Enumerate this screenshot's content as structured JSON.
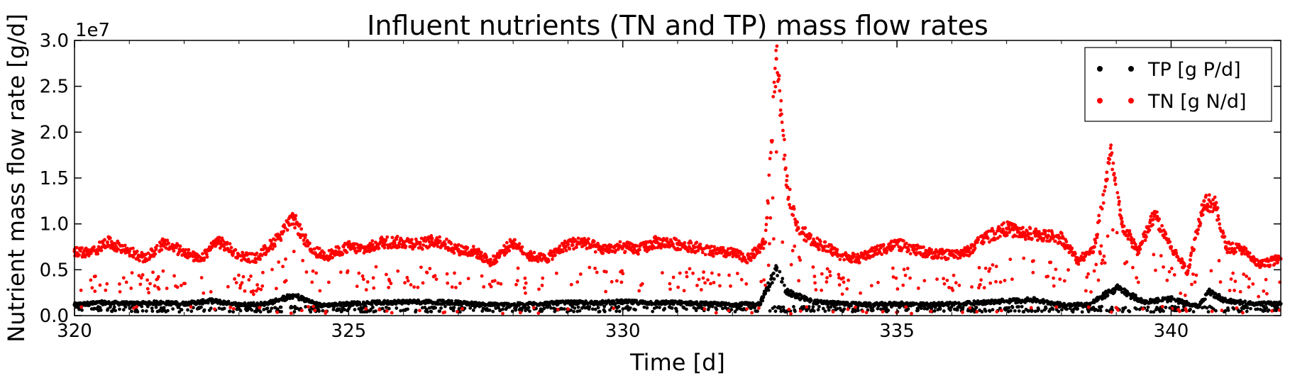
{
  "chart_data": {
    "type": "scatter",
    "title": "Influent nutrients (TN and TP) mass flow rates",
    "xlabel": "Time [d]",
    "ylabel": "Nutrient mass flow rate [g/d]",
    "y_offset_text": "1e7",
    "xlim": [
      320,
      342
    ],
    "ylim": [
      0,
      3.0
    ],
    "y_scale_factor": 10000000,
    "x_ticks": [
      320,
      325,
      330,
      335,
      340
    ],
    "x_tick_labels": [
      "320",
      "325",
      "330",
      "335",
      "340"
    ],
    "y_ticks": [
      0.0,
      0.5,
      1.0,
      1.5,
      2.0,
      2.5,
      3.0
    ],
    "y_tick_labels": [
      "0.0",
      "0.5",
      "1.0",
      "1.5",
      "2.0",
      "2.5",
      "3.0"
    ],
    "grid": false,
    "legend_position": "top-right",
    "series": [
      {
        "name": "TP [g P/d]",
        "color": "#000000",
        "x": [
          320,
          320.5,
          321,
          321.5,
          322,
          322.5,
          323,
          323.5,
          324,
          324.5,
          325,
          325.5,
          326,
          326.5,
          327,
          327.5,
          328,
          328.5,
          329,
          329.5,
          330,
          330.5,
          331,
          331.5,
          332,
          332.5,
          332.8,
          333,
          333.5,
          334,
          334.5,
          335,
          335.5,
          336,
          336.5,
          337,
          337.5,
          338,
          338.5,
          339,
          339.5,
          340,
          340.5,
          340.7,
          341,
          341.5,
          342
        ],
        "y": [
          0.12,
          0.14,
          0.13,
          0.14,
          0.13,
          0.16,
          0.12,
          0.13,
          0.22,
          0.11,
          0.13,
          0.14,
          0.15,
          0.15,
          0.14,
          0.12,
          0.12,
          0.13,
          0.14,
          0.14,
          0.15,
          0.14,
          0.14,
          0.13,
          0.12,
          0.13,
          0.5,
          0.25,
          0.15,
          0.13,
          0.12,
          0.13,
          0.12,
          0.13,
          0.14,
          0.16,
          0.17,
          0.12,
          0.12,
          0.3,
          0.15,
          0.18,
          0.1,
          0.26,
          0.16,
          0.13,
          0.13
        ]
      },
      {
        "name": "TN [g N/d]",
        "color": "#ff0000",
        "x": [
          320,
          320.3,
          320.6,
          321,
          321.3,
          321.6,
          322,
          322.3,
          322.6,
          323,
          323.3,
          323.6,
          324,
          324.3,
          324.6,
          325,
          325.3,
          325.6,
          326,
          326.3,
          326.6,
          327,
          327.3,
          327.6,
          328,
          328.3,
          328.6,
          329,
          329.3,
          329.6,
          330,
          330.3,
          330.6,
          331,
          331.3,
          331.6,
          332,
          332.3,
          332.6,
          332.8,
          333,
          333.2,
          333.5,
          333.8,
          334,
          334.3,
          334.6,
          335,
          335.3,
          335.6,
          336,
          336.3,
          336.6,
          337,
          337.3,
          337.6,
          338,
          338.3,
          338.6,
          338.9,
          339.1,
          339.4,
          339.7,
          340,
          340.3,
          340.6,
          340.8,
          341,
          341.3,
          341.6,
          342
        ],
        "y": [
          0.7,
          0.68,
          0.8,
          0.7,
          0.62,
          0.78,
          0.7,
          0.6,
          0.82,
          0.66,
          0.62,
          0.78,
          1.05,
          0.72,
          0.65,
          0.75,
          0.72,
          0.8,
          0.8,
          0.78,
          0.82,
          0.72,
          0.7,
          0.58,
          0.8,
          0.65,
          0.62,
          0.78,
          0.8,
          0.72,
          0.75,
          0.72,
          0.8,
          0.78,
          0.75,
          0.7,
          0.68,
          0.62,
          0.8,
          2.8,
          1.4,
          0.95,
          0.8,
          0.72,
          0.65,
          0.62,
          0.7,
          0.78,
          0.72,
          0.68,
          0.66,
          0.7,
          0.85,
          0.95,
          0.9,
          0.88,
          0.85,
          0.6,
          0.75,
          1.75,
          1.0,
          0.7,
          1.1,
          0.75,
          0.48,
          1.25,
          1.2,
          0.75,
          0.72,
          0.55,
          0.62
        ]
      }
    ]
  }
}
